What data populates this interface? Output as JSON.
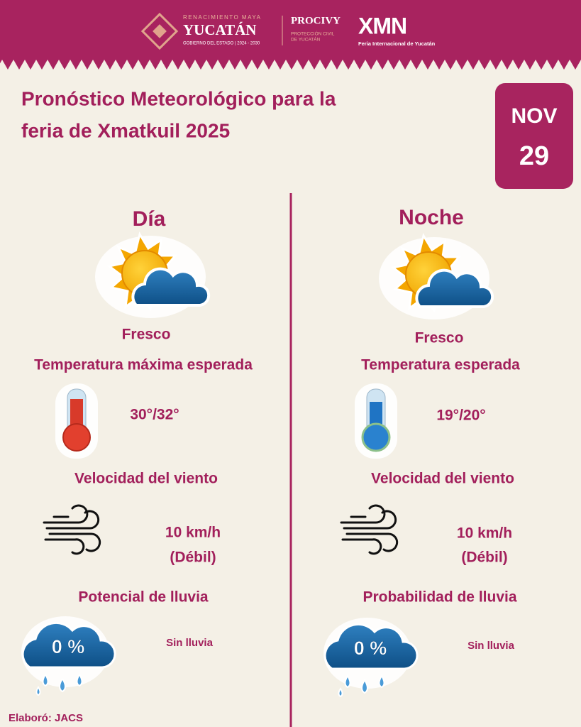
{
  "header": {
    "brand_tagline": "RENACIMIENTO MAYA",
    "brand_name": "YUCATÁN",
    "brand_subtitle": "GOBIERNO DEL ESTADO | 2024 - 2030",
    "agency_name": "PROCIVY",
    "agency_subtitle": [
      "PROTECCIÓN CIVIL",
      "DE YUCATÁN"
    ],
    "event_logo": "XMN",
    "event_subtitle": "Feria Internacional de Yucatán"
  },
  "title": [
    "Pronóstico Meteorológico para la",
    "feria de Xmatkuil 2025"
  ],
  "date": {
    "month": "NOV",
    "day": "29"
  },
  "columns": [
    {
      "heading": "Día",
      "condition": "Fresco",
      "temperature_label": "Temperatura máxima esperada",
      "temperature": "30°/32°",
      "wind_label": "Velocidad del viento",
      "wind_speed": "10 km/h",
      "wind_description": "(Débil)",
      "rain_label": "Potencial de lluvia",
      "rain_chance": "0 %",
      "rain_description": "Sin lluvia"
    },
    {
      "heading": "Noche",
      "condition": "Fresco",
      "temperature_label": "Temperatura esperada",
      "temperature": "19°/20°",
      "wind_label": "Velocidad del viento",
      "wind_speed": "10 km/h",
      "wind_description": "(Débil)",
      "rain_label": "Probabilidad de lluvia",
      "rain_chance": "0 %",
      "rain_description": "Sin lluvia"
    }
  ],
  "footer": "Elaboró: JACS"
}
